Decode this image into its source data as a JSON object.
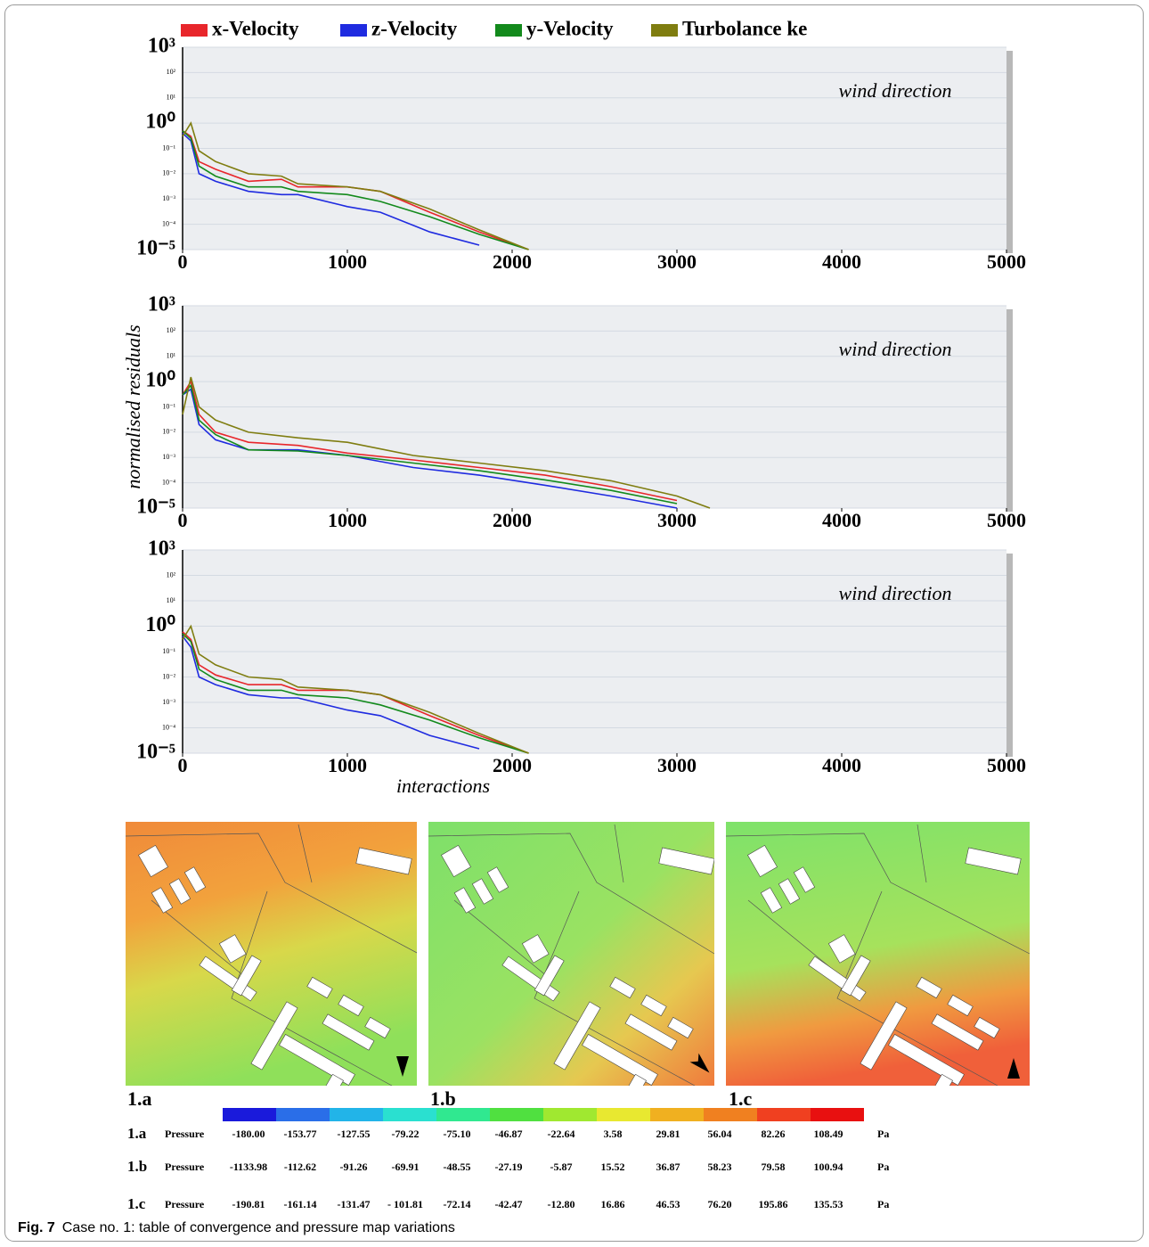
{
  "chart_data": [
    {
      "type": "line",
      "log_y": true,
      "grid": true,
      "legend": "top",
      "annotation": "wind direction",
      "x": [
        0,
        50,
        100,
        200,
        400,
        600,
        700,
        1000,
        1200,
        1500,
        1800,
        2100
      ],
      "series": [
        {
          "name": "x-Velocity",
          "color": "#e8262b",
          "values": [
            0.5,
            0.3,
            0.03,
            0.015,
            0.005,
            0.006,
            0.003,
            0.003,
            0.002,
            0.0003,
            5e-05,
            1e-05
          ]
        },
        {
          "name": "z-Velocity",
          "color": "#1f2be0",
          "values": [
            0.4,
            0.2,
            0.01,
            0.005,
            0.002,
            0.0015,
            0.0015,
            0.0005,
            0.0003,
            5e-05,
            1.5e-05,
            null
          ]
        },
        {
          "name": "y-Velocity",
          "color": "#138a1c",
          "values": [
            0.5,
            0.25,
            0.02,
            0.008,
            0.003,
            0.003,
            0.002,
            0.0015,
            0.0008,
            0.0002,
            4e-05,
            1e-05
          ]
        },
        {
          "name": "Turbolance ke",
          "color": "#7f7d10",
          "values": [
            0.3,
            1,
            0.08,
            0.03,
            0.01,
            0.008,
            0.004,
            0.003,
            0.002,
            0.0004,
            6e-05,
            1e-05
          ]
        }
      ],
      "xlim": [
        0,
        5000
      ],
      "xticks": [
        0,
        1000,
        2000,
        3000,
        4000,
        5000
      ],
      "ylim": [
        1e-05,
        1000
      ],
      "yticks": [
        {
          "value": 1e-05,
          "label": "10⁻⁵"
        },
        {
          "value": 0.0001,
          "label": "10⁻⁴"
        },
        {
          "value": 0.001,
          "label": "10⁻³"
        },
        {
          "value": 0.01,
          "label": "10⁻²"
        },
        {
          "value": 0.1,
          "label": "10⁻¹"
        },
        {
          "value": 1,
          "label": "10⁰"
        },
        {
          "value": 10,
          "label": "10¹"
        },
        {
          "value": 100,
          "label": "10²"
        },
        {
          "value": 1000,
          "label": "10³"
        }
      ]
    },
    {
      "type": "line",
      "log_y": true,
      "grid": true,
      "annotation": "wind direction",
      "ylabel": "normalised residuals",
      "x": [
        0,
        50,
        100,
        200,
        400,
        700,
        1000,
        1400,
        1800,
        2200,
        2600,
        3000,
        3200
      ],
      "series": [
        {
          "name": "x-Velocity",
          "color": "#e8262b",
          "values": [
            0.3,
            1,
            0.05,
            0.01,
            0.004,
            0.003,
            0.0015,
            0.0008,
            0.0004,
            0.0002,
            7e-05,
            2e-05,
            null
          ]
        },
        {
          "name": "z-Velocity",
          "color": "#1f2be0",
          "values": [
            0.3,
            0.5,
            0.02,
            0.005,
            0.002,
            0.002,
            0.0012,
            0.0004,
            0.0002,
            8e-05,
            3e-05,
            1e-05,
            null
          ]
        },
        {
          "name": "y-Velocity",
          "color": "#138a1c",
          "values": [
            0.3,
            0.7,
            0.03,
            0.008,
            0.002,
            0.0018,
            0.0012,
            0.0006,
            0.0003,
            0.00013,
            5e-05,
            1.5e-05,
            null
          ]
        },
        {
          "name": "Turbolance ke",
          "color": "#7f7d10",
          "values": [
            0.05,
            1.5,
            0.1,
            0.03,
            0.01,
            0.006,
            0.004,
            0.0012,
            0.0006,
            0.0003,
            0.00012,
            3e-05,
            1e-05
          ]
        }
      ],
      "xlim": [
        0,
        5000
      ],
      "xticks": [
        0,
        1000,
        2000,
        3000,
        4000,
        5000
      ],
      "ylim": [
        1e-05,
        1000
      ],
      "yticks": [
        {
          "value": 1e-05,
          "label": "10⁻⁵"
        },
        {
          "value": 0.0001,
          "label": "10⁻⁴"
        },
        {
          "value": 0.001,
          "label": "10⁻³"
        },
        {
          "value": 0.01,
          "label": "10⁻²"
        },
        {
          "value": 0.1,
          "label": "10⁻¹"
        },
        {
          "value": 1,
          "label": "10⁰"
        },
        {
          "value": 10,
          "label": "10¹"
        },
        {
          "value": 100,
          "label": "10²"
        },
        {
          "value": 1000,
          "label": "10³"
        }
      ]
    },
    {
      "type": "line",
      "log_y": true,
      "grid": true,
      "annotation": "wind direction",
      "xlabel": "interactions",
      "x": [
        0,
        50,
        100,
        200,
        400,
        600,
        700,
        1000,
        1200,
        1500,
        1800,
        2100
      ],
      "series": [
        {
          "name": "x-Velocity",
          "color": "#e8262b",
          "values": [
            0.6,
            0.3,
            0.03,
            0.012,
            0.005,
            0.005,
            0.003,
            0.003,
            0.002,
            0.0003,
            5e-05,
            1e-05
          ]
        },
        {
          "name": "z-Velocity",
          "color": "#1f2be0",
          "values": [
            0.4,
            0.15,
            0.01,
            0.005,
            0.002,
            0.0015,
            0.0015,
            0.0005,
            0.0003,
            5e-05,
            1.5e-05,
            null
          ]
        },
        {
          "name": "y-Velocity",
          "color": "#138a1c",
          "values": [
            0.5,
            0.25,
            0.02,
            0.008,
            0.003,
            0.003,
            0.002,
            0.0015,
            0.0008,
            0.0002,
            4e-05,
            1e-05
          ]
        },
        {
          "name": "Turbolance ke",
          "color": "#7f7d10",
          "values": [
            0.3,
            1,
            0.08,
            0.03,
            0.01,
            0.008,
            0.004,
            0.003,
            0.002,
            0.0004,
            6e-05,
            1e-05
          ]
        }
      ],
      "xlim": [
        0,
        5000
      ],
      "xticks": [
        0,
        1000,
        2000,
        3000,
        4000,
        5000
      ],
      "ylim": [
        1e-05,
        1000
      ],
      "yticks": [
        {
          "value": 1e-05,
          "label": "10⁻⁵"
        },
        {
          "value": 0.0001,
          "label": "10⁻⁴"
        },
        {
          "value": 0.001,
          "label": "10⁻³"
        },
        {
          "value": 0.01,
          "label": "10⁻²"
        },
        {
          "value": 0.1,
          "label": "10⁻¹"
        },
        {
          "value": 1,
          "label": "10⁰"
        },
        {
          "value": 10,
          "label": "10¹"
        },
        {
          "value": 100,
          "label": "10²"
        },
        {
          "value": 1000,
          "label": "10³"
        }
      ]
    }
  ],
  "maps": [
    "1.a",
    "1.b",
    "1.c"
  ],
  "pressure_table": {
    "rows": [
      {
        "case": "1.a",
        "quantity": "Pressure",
        "values": [
          "-180.00",
          "-153.77",
          "-127.55",
          "-79.22",
          "-75.10",
          "-46.87",
          "-22.64",
          "3.58",
          "29.81",
          "56.04",
          "82.26",
          "108.49"
        ],
        "unit": "Pa"
      },
      {
        "case": "1.b",
        "quantity": "Pressure",
        "values": [
          "-1133.98",
          "-112.62",
          "-91.26",
          "-69.91",
          "-48.55",
          "-27.19",
          "-5.87",
          "15.52",
          "36.87",
          "58.23",
          "79.58",
          "100.94"
        ],
        "unit": "Pa"
      },
      {
        "case": "1.c",
        "quantity": "Pressure",
        "values": [
          "-190.81",
          "-161.14",
          "-131.47",
          "- 101.81",
          "-72.14",
          "-42.47",
          "-12.80",
          "16.86",
          "46.53",
          "76.20",
          "195.86",
          "135.53"
        ],
        "unit": "Pa"
      }
    ]
  },
  "caption": {
    "label": "Fig. 7",
    "text": "Case no. 1: table of convergence and pressure map variations"
  }
}
